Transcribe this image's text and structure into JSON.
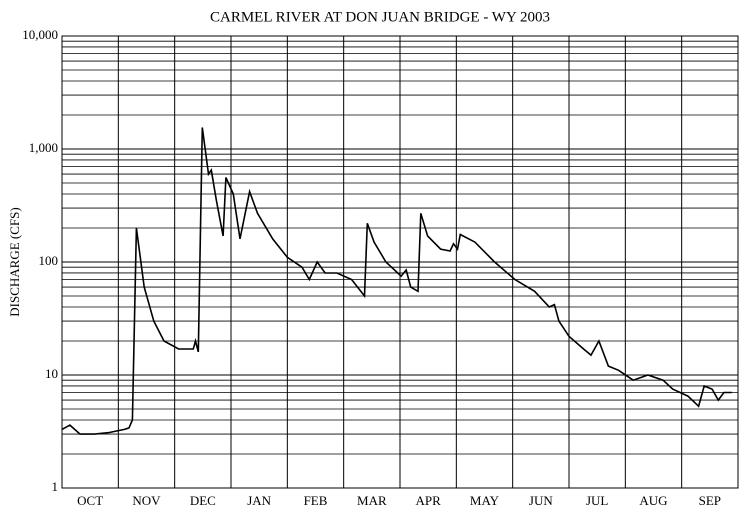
{
  "chart_data": {
    "type": "line",
    "title": "CARMEL RIVER AT DON JUAN BRIDGE - WY 2003",
    "ylabel": "DISCHARGE (CFS)",
    "categories": [
      "OCT",
      "NOV",
      "DEC",
      "JAN",
      "FEB",
      "MAR",
      "APR",
      "MAY",
      "JUN",
      "JUL",
      "AUG",
      "SEP"
    ],
    "xlim": [
      0,
      12
    ],
    "ylim": [
      1,
      10000
    ],
    "log_y": true,
    "yticks": [
      1,
      10,
      100,
      {
        "value": 1000,
        "label": "1,000"
      },
      {
        "value": 10000,
        "label": "10,000"
      }
    ],
    "y_minor_grid": [
      2,
      3,
      4,
      5,
      6,
      7,
      8,
      9,
      20,
      30,
      40,
      50,
      60,
      70,
      80,
      90,
      200,
      300,
      400,
      500,
      600,
      700,
      800,
      900,
      2000,
      3000,
      4000,
      5000,
      6000,
      7000,
      8000,
      9000
    ],
    "grid": true,
    "series": [
      {
        "name": "Discharge",
        "color": "#000000",
        "x": [
          0,
          0.14,
          0.32,
          0.58,
          0.84,
          1.11,
          1.19,
          1.25,
          1.32,
          1.46,
          1.63,
          1.81,
          2.07,
          2.33,
          2.37,
          2.42,
          2.49,
          2.6,
          2.65,
          2.74,
          2.86,
          2.91,
          3.04,
          3.16,
          3.33,
          3.47,
          3.74,
          4.0,
          4.26,
          4.39,
          4.53,
          4.67,
          4.88,
          5.14,
          5.37,
          5.42,
          5.54,
          5.75,
          6.02,
          6.11,
          6.19,
          6.32,
          6.37,
          6.49,
          6.72,
          6.89,
          6.95,
          7.02,
          7.07,
          7.33,
          7.68,
          8.04,
          8.39,
          8.65,
          8.74,
          8.82,
          9.0,
          9.26,
          9.39,
          9.53,
          9.7,
          9.88,
          10.14,
          10.4,
          10.67,
          10.84,
          11.11,
          11.3,
          11.4,
          11.54,
          11.65,
          11.75,
          11.89
        ],
        "values": [
          3.3,
          3.6,
          3.0,
          3.0,
          3.1,
          3.3,
          3.4,
          4.0,
          200,
          60,
          30,
          20,
          17,
          17,
          20,
          16,
          1550,
          600,
          650,
          350,
          170,
          560,
          400,
          160,
          420,
          270,
          160,
          110,
          90,
          70,
          100,
          80,
          80,
          70,
          50,
          220,
          150,
          100,
          75,
          85,
          60,
          55,
          270,
          170,
          130,
          125,
          145,
          130,
          175,
          150,
          100,
          70,
          55,
          40,
          42,
          30,
          22,
          17,
          15,
          20,
          12,
          11,
          9,
          10,
          9,
          7.5,
          6.5,
          5.3,
          8,
          7.5,
          6,
          7,
          7
        ]
      }
    ]
  }
}
